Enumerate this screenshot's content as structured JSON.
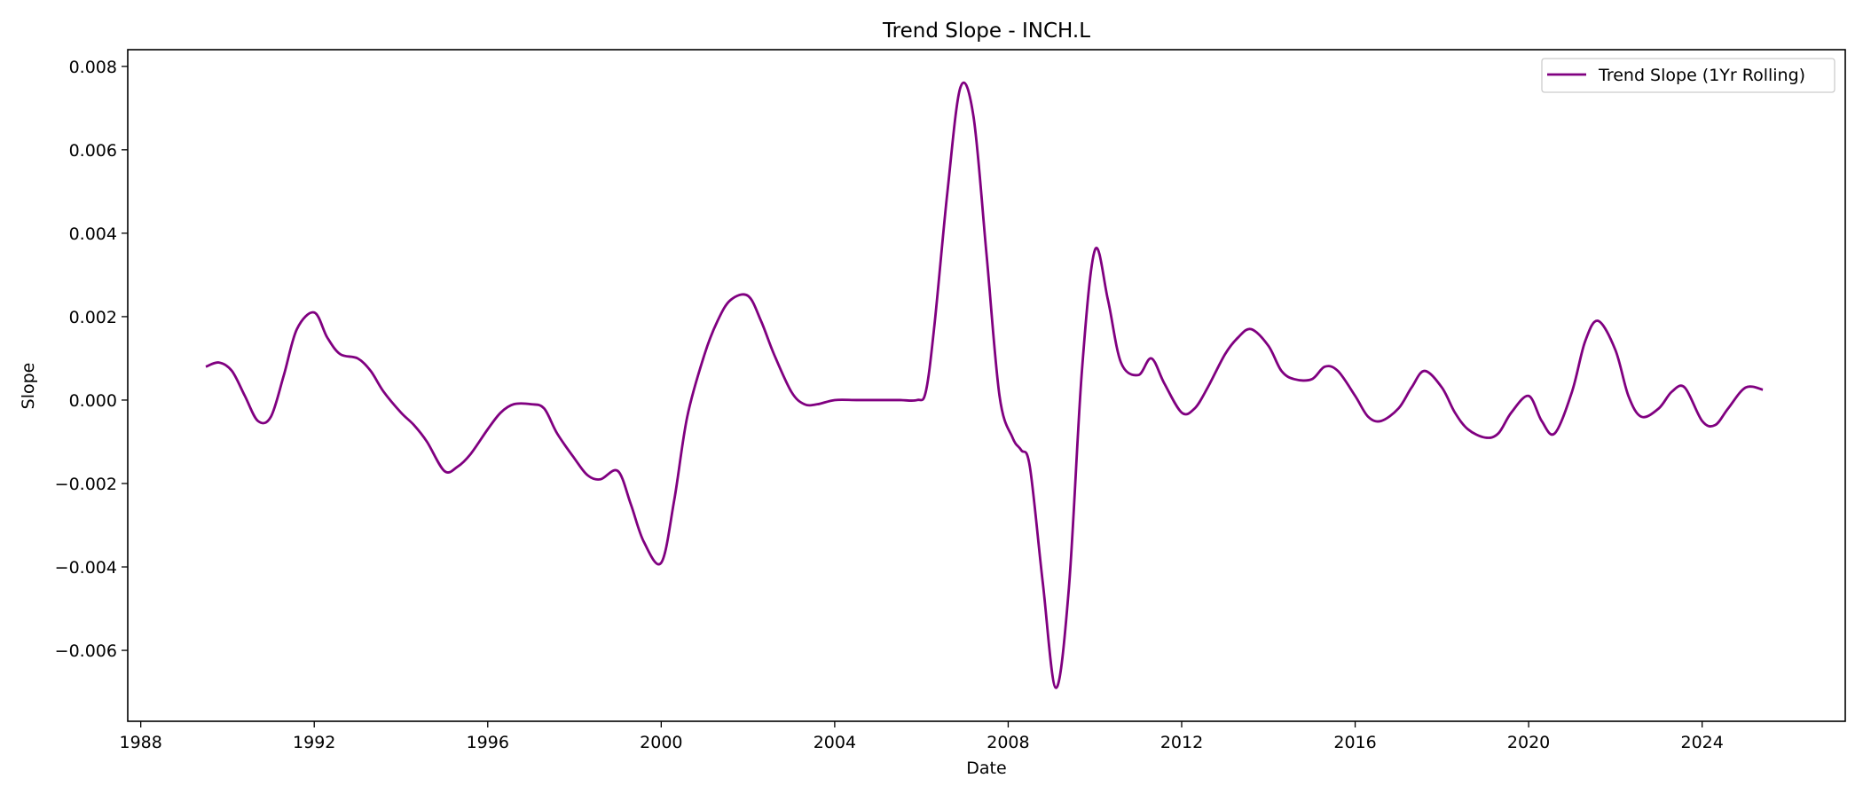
{
  "chart_data": {
    "type": "line",
    "title": "Trend Slope - INCH.L",
    "xlabel": "Date",
    "ylabel": "Slope",
    "xlim": [
      1987.7,
      2027.3
    ],
    "ylim": [
      -0.0077,
      0.0084
    ],
    "x_ticks": [
      1988,
      1992,
      1996,
      2000,
      2004,
      2008,
      2012,
      2016,
      2020,
      2024
    ],
    "x_tick_labels": [
      "1988",
      "1992",
      "1996",
      "2000",
      "2004",
      "2008",
      "2012",
      "2016",
      "2020",
      "2024"
    ],
    "y_ticks": [
      -0.006,
      -0.004,
      -0.002,
      0.0,
      0.002,
      0.004,
      0.006,
      0.008
    ],
    "y_tick_labels": [
      "−0.006",
      "−0.004",
      "−0.002",
      "0.000",
      "0.002",
      "0.004",
      "0.006",
      "0.008"
    ],
    "grid": false,
    "legend_position": "top-right",
    "series": [
      {
        "name": "Trend Slope (1Yr Rolling)",
        "color": "#800080",
        "x": [
          1989.5,
          1989.8,
          1990.1,
          1990.4,
          1990.7,
          1991.0,
          1991.3,
          1991.6,
          1992.0,
          1992.3,
          1992.6,
          1993.0,
          1993.3,
          1993.6,
          1994.0,
          1994.3,
          1994.6,
          1995.0,
          1995.3,
          1995.6,
          1996.0,
          1996.3,
          1996.6,
          1997.0,
          1997.3,
          1997.6,
          1998.0,
          1998.3,
          1998.6,
          1999.0,
          1999.3,
          1999.6,
          2000.0,
          2000.3,
          2000.6,
          2001.0,
          2001.3,
          2001.6,
          2002.0,
          2002.3,
          2002.6,
          2003.0,
          2003.3,
          2003.6,
          2004.0,
          2004.5,
          2005.0,
          2005.5,
          2005.9,
          2006.1,
          2006.3,
          2006.6,
          2006.9,
          2007.2,
          2007.5,
          2007.8,
          2008.1,
          2008.3,
          2008.5,
          2008.8,
          2009.1,
          2009.4,
          2009.7,
          2010.0,
          2010.3,
          2010.6,
          2011.0,
          2011.3,
          2011.6,
          2012.0,
          2012.3,
          2012.6,
          2013.0,
          2013.3,
          2013.6,
          2014.0,
          2014.3,
          2014.6,
          2015.0,
          2015.3,
          2015.6,
          2016.0,
          2016.3,
          2016.6,
          2017.0,
          2017.3,
          2017.6,
          2018.0,
          2018.3,
          2018.6,
          2019.0,
          2019.3,
          2019.6,
          2020.0,
          2020.3,
          2020.6,
          2021.0,
          2021.3,
          2021.6,
          2022.0,
          2022.3,
          2022.6,
          2023.0,
          2023.3,
          2023.6,
          2024.0,
          2024.3,
          2024.6,
          2025.0,
          2025.4
        ],
        "y": [
          0.0008,
          0.0009,
          0.0007,
          0.0001,
          -0.0005,
          -0.0004,
          0.0006,
          0.0017,
          0.0021,
          0.0015,
          0.0011,
          0.001,
          0.0007,
          0.0002,
          -0.0003,
          -0.0006,
          -0.001,
          -0.0017,
          -0.0016,
          -0.0013,
          -0.0007,
          -0.0003,
          -0.0001,
          -0.0001,
          -0.0002,
          -0.0008,
          -0.0014,
          -0.0018,
          -0.0019,
          -0.0017,
          -0.0025,
          -0.0034,
          -0.0039,
          -0.0024,
          -0.0004,
          0.0011,
          0.0019,
          0.0024,
          0.0025,
          0.0019,
          0.0011,
          0.0002,
          -0.0001,
          -0.0001,
          0.0,
          0.0,
          0.0,
          0.0,
          0.0,
          0.0002,
          0.0018,
          0.005,
          0.0075,
          0.0068,
          0.0035,
          0.0001,
          -0.0009,
          -0.0012,
          -0.0016,
          -0.0044,
          -0.0069,
          -0.0045,
          0.0007,
          0.0036,
          0.0024,
          0.0009,
          0.0006,
          0.001,
          0.0004,
          -0.0003,
          -0.0002,
          0.0003,
          0.0011,
          0.0015,
          0.0017,
          0.0013,
          0.0007,
          0.0005,
          0.0005,
          0.0008,
          0.0007,
          0.0001,
          -0.0004,
          -0.0005,
          -0.0002,
          0.0003,
          0.0007,
          0.0003,
          -0.0003,
          -0.0007,
          -0.0009,
          -0.0008,
          -0.0003,
          0.0001,
          -0.0005,
          -0.0008,
          0.0002,
          0.0014,
          0.0019,
          0.0012,
          0.0001,
          -0.0004,
          -0.0002,
          0.0002,
          0.0003,
          -0.0005,
          -0.0006,
          -0.0002,
          0.0003,
          0.00025
        ]
      }
    ]
  }
}
